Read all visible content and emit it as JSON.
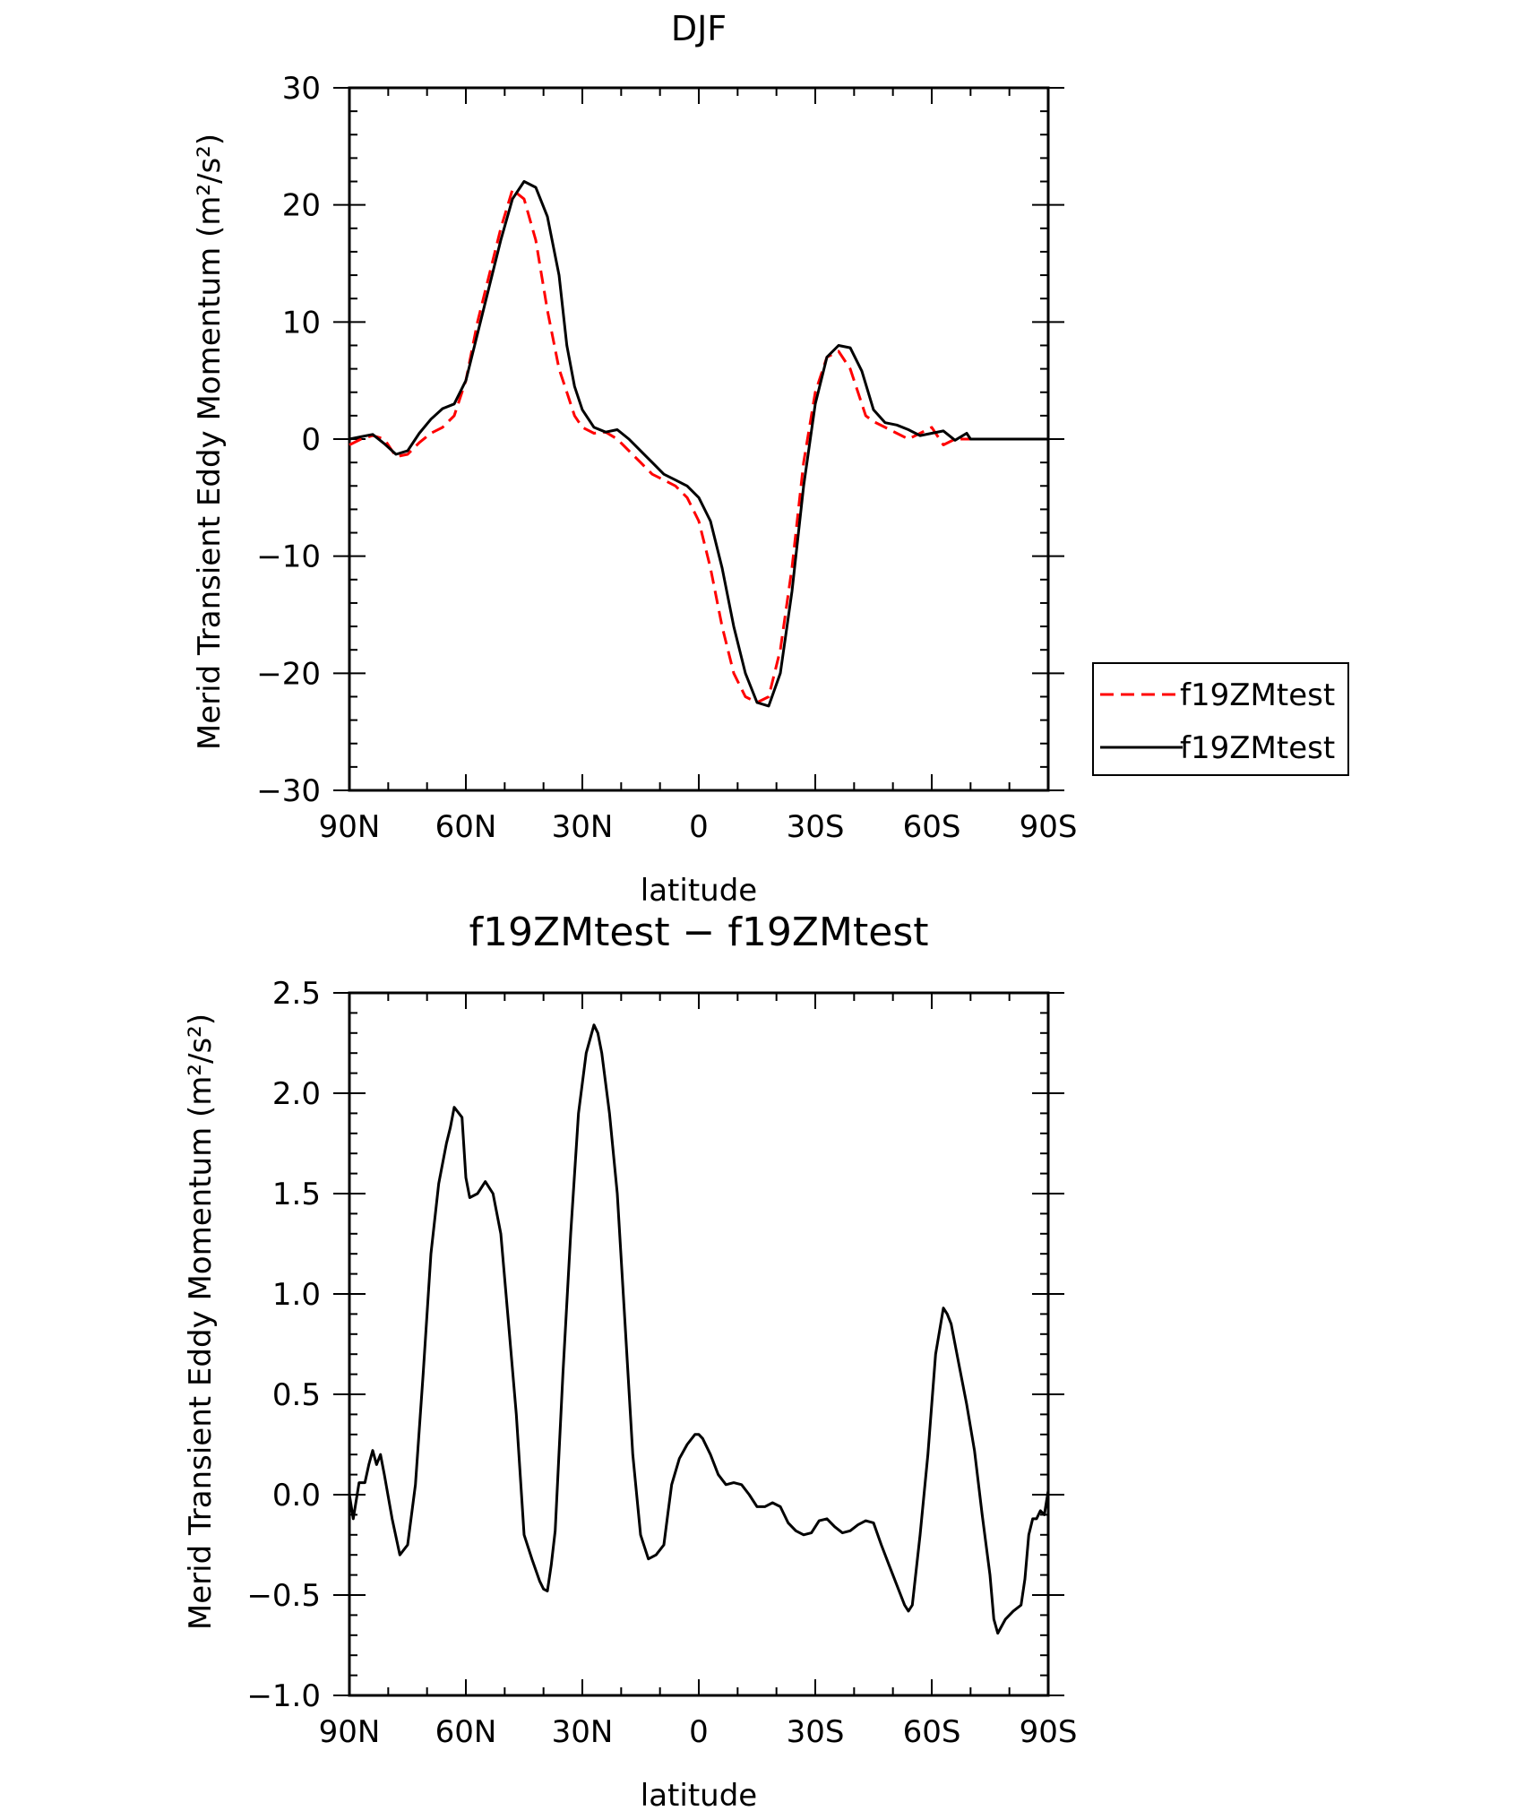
{
  "chart_data": [
    {
      "type": "line",
      "title": "DJF",
      "xlabel": "latitude",
      "ylabel": "Merid Transient Eddy Momentum (m²/s²)",
      "xlim": [
        90,
        -90
      ],
      "ylim": [
        -30,
        30
      ],
      "xticks": [
        90,
        60,
        30,
        0,
        -30,
        -60,
        -90
      ],
      "xtick_labels": [
        "90N",
        "60N",
        "30N",
        "0",
        "30S",
        "60S",
        "90S"
      ],
      "yticks": [
        -30,
        -20,
        -10,
        0,
        10,
        20,
        30
      ],
      "ytick_labels": [
        "−30",
        "−20",
        "−10",
        "0",
        "10",
        "20",
        "30"
      ],
      "legend_position": "right",
      "series": [
        {
          "name": "f19ZMtest",
          "color": "#ff0000",
          "dash": "dashed",
          "x": [
            90,
            87,
            84,
            81,
            78,
            75,
            72,
            69,
            66,
            63,
            60,
            57,
            54,
            51,
            48,
            45,
            42,
            39,
            36,
            34,
            32,
            30,
            27,
            24,
            21,
            18,
            15,
            12,
            9,
            6,
            3,
            0,
            -3,
            -6,
            -9,
            -12,
            -15,
            -18,
            -21,
            -24,
            -27,
            -30,
            -33,
            -36,
            -39,
            -42,
            -43,
            -45,
            -48,
            -51,
            -54,
            -57,
            -60,
            -63,
            -66,
            -69,
            -70,
            -72,
            -75,
            -78,
            -81,
            -84,
            -87,
            -88,
            -90
          ],
          "y": [
            -0.5,
            0,
            0.3,
            0,
            -1.5,
            -1.3,
            -0.3,
            0.5,
            1,
            2,
            5,
            10,
            14,
            18,
            21.3,
            20.5,
            17,
            11,
            6,
            4,
            2,
            1,
            0.5,
            0.6,
            0,
            -1,
            -2,
            -3,
            -3.5,
            -4,
            -5,
            -7,
            -11,
            -16,
            -20,
            -22,
            -22.5,
            -22,
            -18,
            -11,
            -2,
            4,
            7,
            7.5,
            6,
            3,
            2,
            1.5,
            1,
            0.5,
            0,
            0.5,
            1,
            -0.5,
            0,
            0,
            0,
            0,
            0,
            0,
            0,
            0,
            0,
            0,
            0
          ]
        },
        {
          "name": "f19ZMtest",
          "color": "#000000",
          "dash": "solid",
          "x": [
            90,
            87,
            84,
            81,
            78,
            75,
            72,
            69,
            66,
            63,
            60,
            57,
            54,
            51,
            48,
            45,
            42,
            39,
            36,
            34,
            32,
            30,
            27,
            24,
            21,
            18,
            15,
            12,
            9,
            6,
            3,
            0,
            -3,
            -6,
            -9,
            -12,
            -15,
            -18,
            -21,
            -24,
            -27,
            -30,
            -33,
            -36,
            -39,
            -42,
            -45,
            -48,
            -51,
            -54,
            -57,
            -60,
            -63,
            -66,
            -69,
            -70,
            -72,
            -75,
            -78,
            -81,
            -84,
            -87,
            -88,
            -90
          ],
          "y": [
            0,
            0.2,
            0.4,
            -0.4,
            -1.3,
            -1.0,
            0.5,
            1.7,
            2.6,
            3.0,
            5,
            9,
            13,
            17,
            20.5,
            22,
            21.5,
            19,
            14,
            8,
            4.5,
            2.5,
            1,
            0.6,
            0.8,
            0,
            -1,
            -2,
            -3,
            -3.5,
            -4,
            -5,
            -7,
            -11,
            -16,
            -20,
            -22.5,
            -22.8,
            -20,
            -13,
            -4,
            3,
            7,
            8,
            7.8,
            5.8,
            2.5,
            1.4,
            1.2,
            0.8,
            0.3,
            0.5,
            0.7,
            -0.1,
            0.5,
            0,
            0,
            0,
            0,
            0,
            0,
            0,
            0,
            0
          ]
        }
      ]
    },
    {
      "type": "line",
      "title": "f19ZMtest − f19ZMtest",
      "xlabel": "latitude",
      "ylabel": "Merid Transient Eddy Momentum (m²/s²)",
      "xlim": [
        90,
        -90
      ],
      "ylim": [
        -1.0,
        2.5
      ],
      "xticks": [
        90,
        60,
        30,
        0,
        -30,
        -60,
        -90
      ],
      "xtick_labels": [
        "90N",
        "60N",
        "30N",
        "0",
        "30S",
        "60S",
        "90S"
      ],
      "yticks": [
        -1.0,
        -0.5,
        0.0,
        0.5,
        1.0,
        1.5,
        2.0,
        2.5
      ],
      "ytick_labels": [
        "−1.0",
        "−0.5",
        "0.0",
        "0.5",
        "1.0",
        "1.5",
        "2.0",
        "2.5"
      ],
      "series": [
        {
          "color": "#000000",
          "dash": "solid",
          "x": [
            90,
            89,
            87.5,
            86,
            85,
            84,
            83,
            82,
            81,
            79,
            77,
            75,
            73,
            71,
            69,
            67,
            65,
            64,
            63,
            61,
            60,
            59,
            57,
            55,
            53,
            51,
            49,
            47,
            45,
            43,
            41,
            40,
            39,
            38,
            37,
            35,
            33,
            31,
            29,
            27,
            26,
            25,
            23,
            21,
            19,
            17,
            15,
            13,
            11,
            9,
            8,
            7,
            5,
            3,
            1,
            0,
            -1,
            -3,
            -5,
            -7,
            -9,
            -11,
            -13,
            -15,
            -17,
            -19,
            -21,
            -23,
            -25,
            -27,
            -29,
            -31,
            -33,
            -35,
            -37,
            -39,
            -41,
            -43,
            -45,
            -47,
            -49,
            -51,
            -53,
            -54,
            -55,
            -57,
            -59,
            -61,
            -63,
            -64,
            -65,
            -67,
            -69,
            -71,
            -73,
            -75,
            -76,
            -77,
            -79,
            -81,
            -83,
            -84,
            -85,
            -86,
            -87,
            -88,
            -89,
            -90
          ],
          "y": [
            0,
            -0.12,
            0.06,
            0.06,
            0.15,
            0.22,
            0.15,
            0.2,
            0.1,
            -0.12,
            -0.3,
            -0.25,
            0.05,
            0.6,
            1.2,
            1.55,
            1.75,
            1.83,
            1.93,
            1.88,
            1.58,
            1.48,
            1.5,
            1.56,
            1.5,
            1.3,
            0.85,
            0.4,
            -0.2,
            -0.32,
            -0.43,
            -0.47,
            -0.48,
            -0.35,
            -0.18,
            0.6,
            1.3,
            1.9,
            2.2,
            2.34,
            2.3,
            2.2,
            1.9,
            1.5,
            0.85,
            0.2,
            -0.2,
            -0.32,
            -0.3,
            -0.25,
            -0.1,
            0.05,
            0.18,
            0.25,
            0.3,
            0.3,
            0.28,
            0.2,
            0.1,
            0.05,
            0.06,
            0.05,
            0,
            -0.06,
            -0.06,
            -0.04,
            -0.06,
            -0.14,
            -0.18,
            -0.2,
            -0.19,
            -0.13,
            -0.12,
            -0.16,
            -0.19,
            -0.18,
            -0.15,
            -0.13,
            -0.14,
            -0.25,
            -0.35,
            -0.45,
            -0.55,
            -0.58,
            -0.55,
            -0.2,
            0.2,
            0.7,
            0.93,
            0.9,
            0.85,
            0.65,
            0.45,
            0.22,
            -0.1,
            -0.4,
            -0.62,
            -0.69,
            -0.62,
            -0.58,
            -0.55,
            -0.42,
            -0.2,
            -0.12,
            -0.12,
            -0.08,
            -0.1,
            0.02
          ]
        }
      ]
    }
  ],
  "legend": {
    "entries": [
      {
        "label": "f19ZMtest",
        "color": "#ff0000",
        "dash": "dashed"
      },
      {
        "label": "f19ZMtest",
        "color": "#000000",
        "dash": "solid"
      }
    ]
  }
}
